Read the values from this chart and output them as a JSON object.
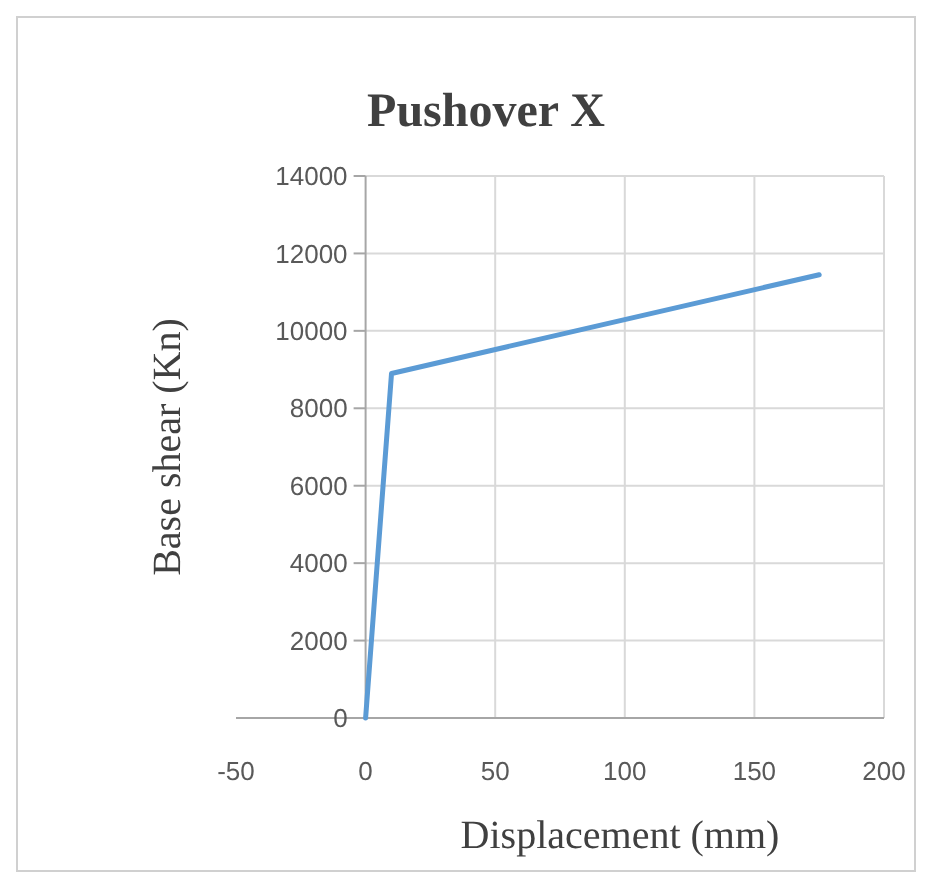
{
  "chart_data": {
    "type": "line",
    "title": "Pushover X",
    "xlabel": "Displacement  (mm)",
    "ylabel": "Base shear  (Kn)",
    "x": [
      0,
      10,
      175
    ],
    "series": [
      {
        "color": "#5b9bd5",
        "values": [
          0,
          8900,
          11450
        ]
      }
    ],
    "xlim": [
      -50,
      200
    ],
    "xticks": [
      -50,
      0,
      50,
      100,
      150,
      200
    ],
    "ylim": [
      0,
      14000
    ],
    "yticks": [
      0,
      2000,
      4000,
      6000,
      8000,
      10000,
      12000,
      14000
    ],
    "grid": true,
    "marker": "none",
    "line_style": "solid"
  }
}
